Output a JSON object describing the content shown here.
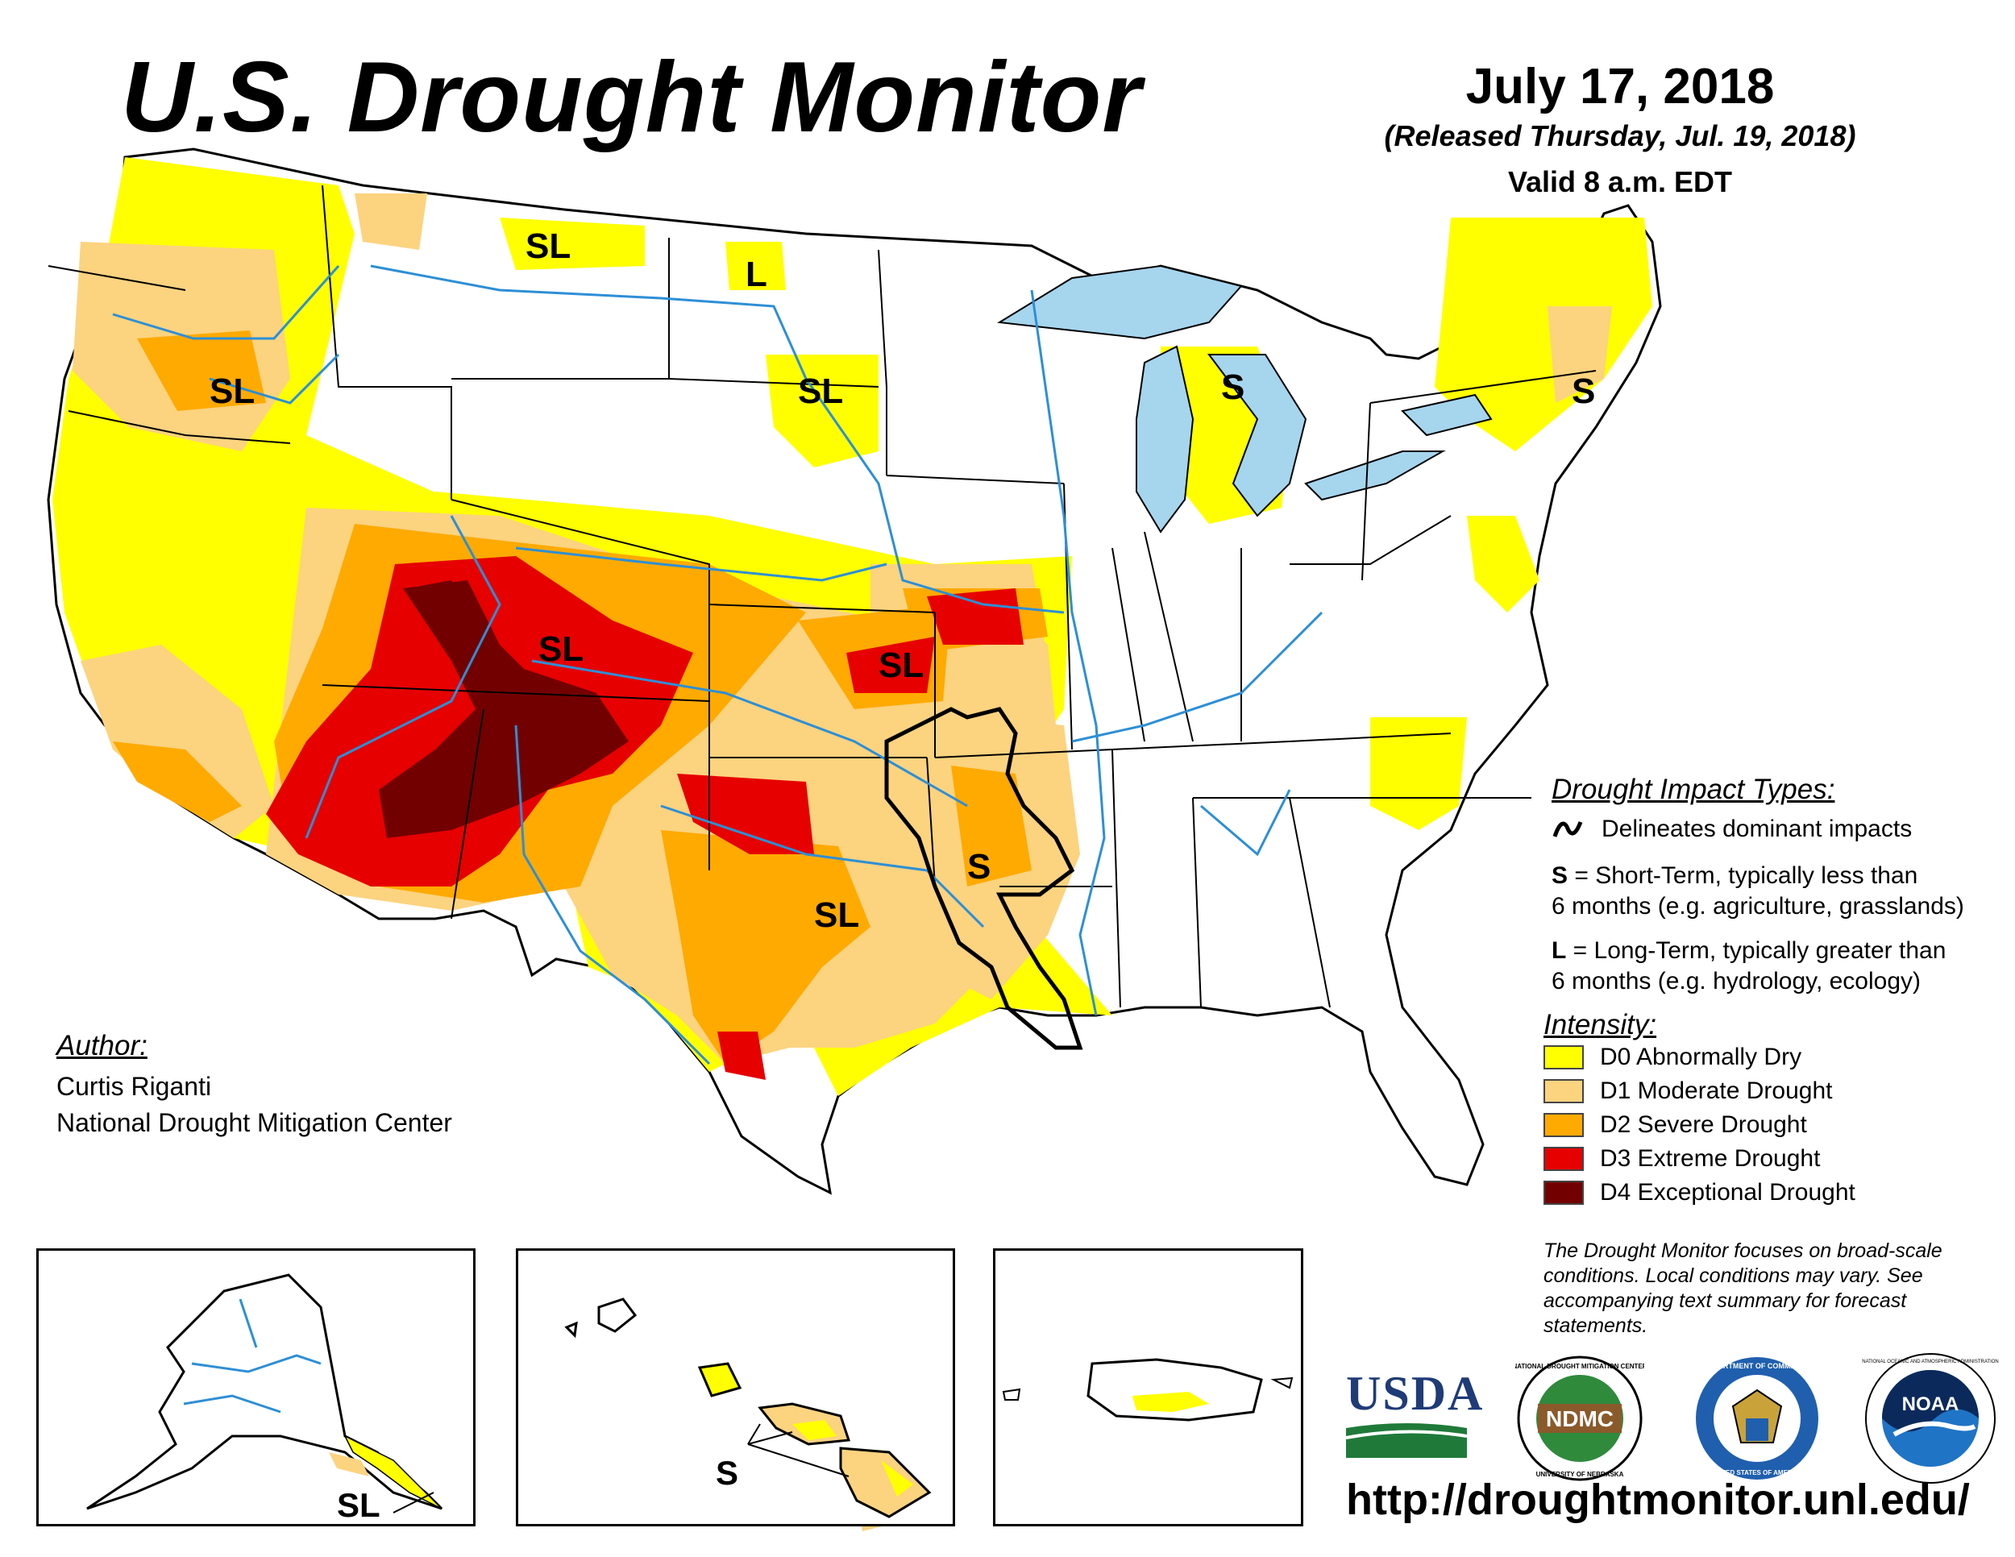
{
  "header": {
    "title": "U.S. Drought Monitor",
    "date": "July 17, 2018",
    "released": "(Released Thursday, Jul. 19, 2018)",
    "valid": "Valid 8 a.m. EDT"
  },
  "map_labels": {
    "northwest": "SL",
    "montana": "SL",
    "north_dakota": "L",
    "south_dakota": "SL",
    "michigan": "S",
    "new_england": "S",
    "colorado": "SL",
    "kansas_missouri": "SL",
    "arkansas": "S",
    "texas": "SL",
    "alaska": "SL",
    "hawaii": "S"
  },
  "author": {
    "heading": "Author:",
    "name": "Curtis Riganti",
    "organization": "National Drought Mitigation Center"
  },
  "impact_types": {
    "heading": "Drought Impact Types:",
    "line_desc": "Delineates dominant impacts",
    "short_key": "S",
    "short_line1": " = Short-Term, typically less than",
    "short_line2": "6 months (e.g. agriculture, grasslands)",
    "long_key": "L",
    "long_line1": " = Long-Term, typically greater than",
    "long_line2": "6 months (e.g. hydrology, ecology)"
  },
  "intensity": {
    "heading": "Intensity:",
    "levels": [
      {
        "label": "D0 Abnormally Dry",
        "color": "#ffff00"
      },
      {
        "label": "D1 Moderate Drought",
        "color": "#fcd37f"
      },
      {
        "label": "D2 Severe Drought",
        "color": "#ffaa00"
      },
      {
        "label": "D3 Extreme Drought",
        "color": "#e60000"
      },
      {
        "label": "D4 Exceptional Drought",
        "color": "#730000"
      }
    ]
  },
  "disclaimer": "The Drought Monitor focuses on broad-scale conditions. Local conditions may vary. See accompanying text summary for forecast statements.",
  "logos": {
    "usda": "USDA",
    "ndmc": "NDMC",
    "ndmc_ring_top": "NATIONAL DROUGHT MITIGATION CENTER",
    "ndmc_ring_bottom": "UNIVERSITY OF NEBRASKA",
    "doc_ring_top": "DEPARTMENT OF COMMERCE",
    "doc_ring_bottom": "UNITED STATES OF AMERICA",
    "noaa": "NOAA",
    "noaa_ring": "NATIONAL OCEANIC AND ATMOSPHERIC ADMINISTRATION"
  },
  "url": "http://droughtmonitor.unl.edu/",
  "colors": {
    "water": "#a6d5ee",
    "river": "#2d8fd6",
    "d0": "#ffff00",
    "d1": "#fcd37f",
    "d2": "#ffaa00",
    "d3": "#e60000",
    "d4": "#730000"
  }
}
